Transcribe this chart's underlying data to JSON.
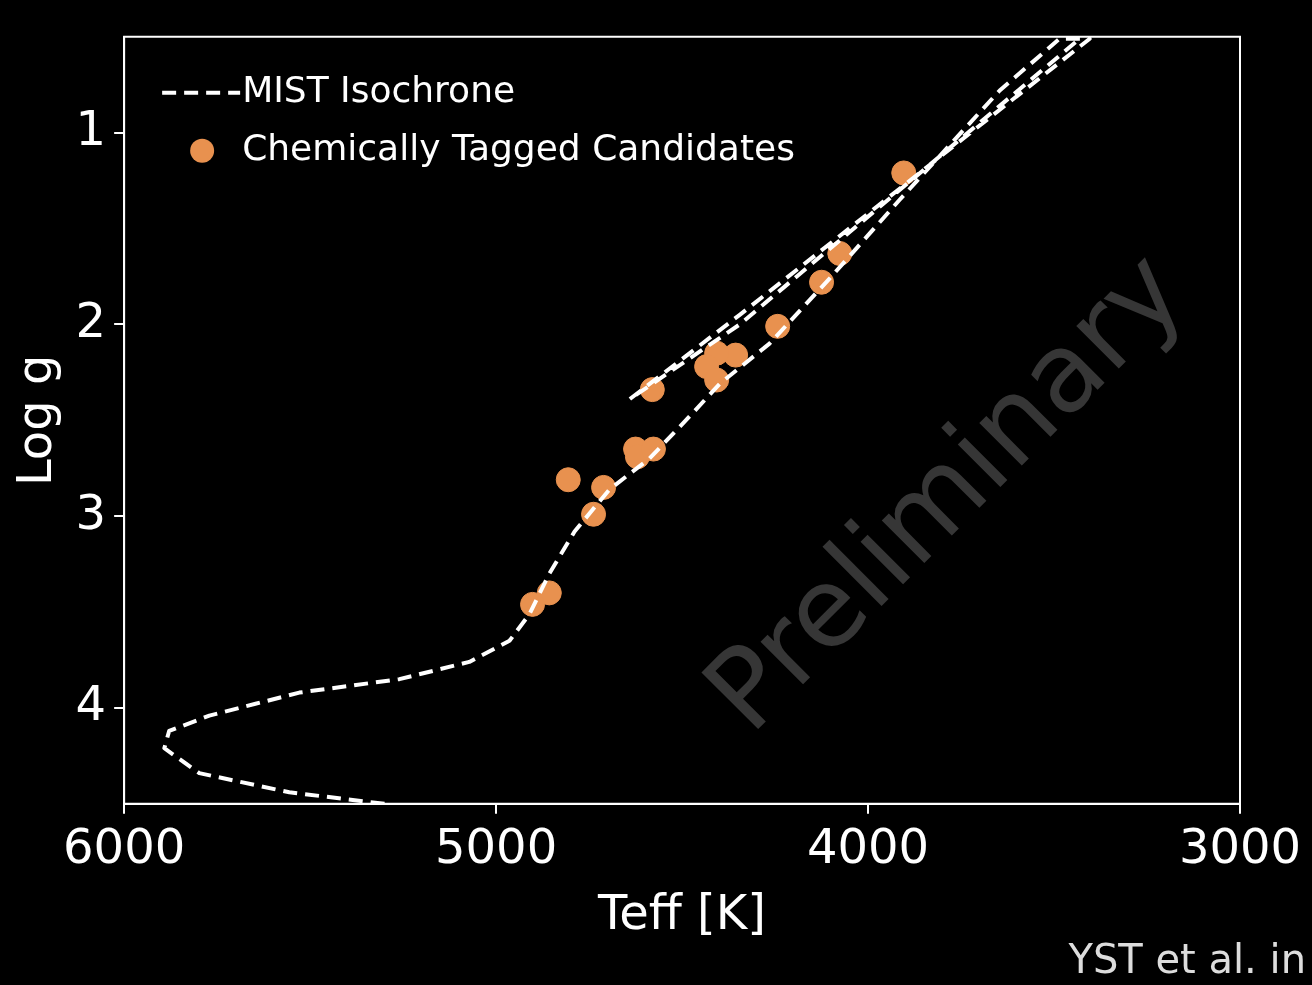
{
  "chart_data": {
    "type": "scatter",
    "xlabel": "Teff [K]",
    "ylabel": "Log g",
    "xlim": [
      6000,
      3000
    ],
    "ylim": [
      4.5,
      0.5
    ],
    "xticks": [
      6000,
      5000,
      4000,
      3000
    ],
    "yticks": [
      1,
      2,
      3,
      4
    ],
    "grid": false,
    "legend": "top left",
    "annotations": [
      "Preliminary",
      "YST et al. in"
    ],
    "series": [
      {
        "name": "MIST Isochrone",
        "type": "line",
        "color": "#ffffff",
        "line_style": "dashed",
        "marker": "none",
        "x": [
          5300,
          5556,
          5798,
          5892,
          5879,
          5771,
          5529,
          5260,
          5072,
          4964,
          4910,
          4857,
          4789,
          4695,
          4588,
          4480,
          4399,
          4265,
          4103,
          3915,
          3646,
          3485,
          3404,
          4345,
          4641,
          4345,
          3431
        ],
        "values": [
          4.5,
          4.44,
          4.34,
          4.21,
          4.12,
          4.04,
          3.92,
          3.85,
          3.76,
          3.65,
          3.51,
          3.3,
          3.08,
          2.86,
          2.7,
          2.48,
          2.31,
          2.1,
          1.76,
          1.35,
          0.78,
          0.51,
          0.51,
          1.95,
          2.39,
          2.0,
          0.51
        ]
      },
      {
        "name": "Chemically Tagged Candidates",
        "type": "scatter",
        "color": "#e8914f",
        "marker": "circle",
        "x": [
          3904,
          4076,
          4125,
          4243,
          4356,
          4407,
          4434,
          4407,
          4580,
          4625,
          4620,
          4577,
          4806,
          4711,
          4738,
          4857,
          4902
        ],
        "values": [
          1.21,
          1.63,
          1.78,
          2.01,
          2.16,
          2.15,
          2.22,
          2.29,
          2.34,
          2.65,
          2.69,
          2.65,
          2.81,
          2.85,
          2.99,
          3.4,
          3.46
        ]
      }
    ]
  }
}
